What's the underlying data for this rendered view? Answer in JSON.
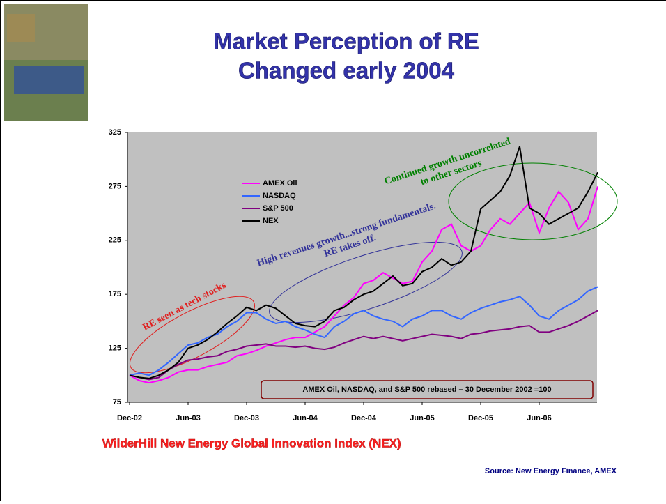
{
  "slide": {
    "title_lines": [
      "Market Perception of RE",
      "Changed early 2004"
    ],
    "footer": "WilderHill New Energy Global Innovation Index (NEX)",
    "source": "Source: New Energy Finance, AMEX"
  },
  "chart_data": {
    "type": "line",
    "categories": [
      "Dec-02",
      null,
      null,
      null,
      null,
      null,
      "Jun-03",
      null,
      null,
      null,
      null,
      null,
      "Dec-03",
      null,
      null,
      null,
      null,
      null,
      "Jun-04",
      null,
      null,
      null,
      null,
      null,
      "Dec-04",
      null,
      null,
      null,
      null,
      null,
      "Jun-05",
      null,
      null,
      null,
      null,
      null,
      "Dec-05",
      null,
      null,
      null,
      null,
      null,
      "Jun-06",
      null,
      null,
      null,
      null,
      null,
      null
    ],
    "series": [
      {
        "name": "AMEX Oil",
        "color": "#ff00ff",
        "values": [
          100,
          95,
          93,
          95,
          98,
          103,
          105,
          105,
          108,
          110,
          112,
          118,
          120,
          123,
          127,
          130,
          133,
          135,
          135,
          140,
          145,
          155,
          165,
          172,
          185,
          188,
          195,
          190,
          185,
          187,
          205,
          215,
          235,
          240,
          220,
          215,
          220,
          235,
          245,
          240,
          250,
          260,
          232,
          255,
          270,
          260,
          235,
          245,
          275
        ]
      },
      {
        "name": "NASDAQ",
        "color": "#3366ff",
        "values": [
          100,
          102,
          100,
          105,
          112,
          120,
          128,
          130,
          135,
          138,
          145,
          150,
          158,
          158,
          152,
          148,
          150,
          145,
          142,
          138,
          135,
          145,
          150,
          157,
          160,
          155,
          152,
          150,
          145,
          152,
          155,
          160,
          160,
          155,
          152,
          158,
          162,
          165,
          168,
          170,
          173,
          165,
          155,
          152,
          160,
          165,
          170,
          178,
          182
        ]
      },
      {
        "name": "S&P 500",
        "color": "#800080",
        "values": [
          100,
          98,
          96,
          98,
          105,
          110,
          114,
          115,
          117,
          118,
          122,
          124,
          127,
          128,
          129,
          127,
          127,
          126,
          127,
          125,
          124,
          126,
          130,
          133,
          136,
          134,
          136,
          134,
          132,
          134,
          136,
          138,
          137,
          136,
          134,
          138,
          139,
          141,
          142,
          143,
          145,
          146,
          140,
          140,
          143,
          146,
          150,
          155,
          160
        ]
      },
      {
        "name": "NEX",
        "color": "#000000",
        "values": [
          100,
          98,
          97,
          100,
          105,
          112,
          125,
          128,
          133,
          140,
          148,
          155,
          163,
          160,
          165,
          162,
          155,
          148,
          146,
          145,
          150,
          160,
          163,
          170,
          175,
          178,
          185,
          192,
          183,
          185,
          196,
          200,
          208,
          202,
          205,
          215,
          254,
          262,
          270,
          285,
          312,
          255,
          250,
          240,
          245,
          250,
          255,
          270,
          288
        ]
      }
    ],
    "ylim": [
      75,
      325
    ],
    "yticks": [
      75,
      125,
      175,
      225,
      275,
      325
    ],
    "grid": false,
    "legend": "upper left",
    "annotations": [
      "RE seen as tech stocks",
      "High revenues growth...strong fundamentals. RE takes off.",
      "Continued growth uncorrelated to other sectors"
    ],
    "note": "AMEX Oil, NASDAQ, and S&P 500 rebased – 30 December 2002 =100"
  }
}
